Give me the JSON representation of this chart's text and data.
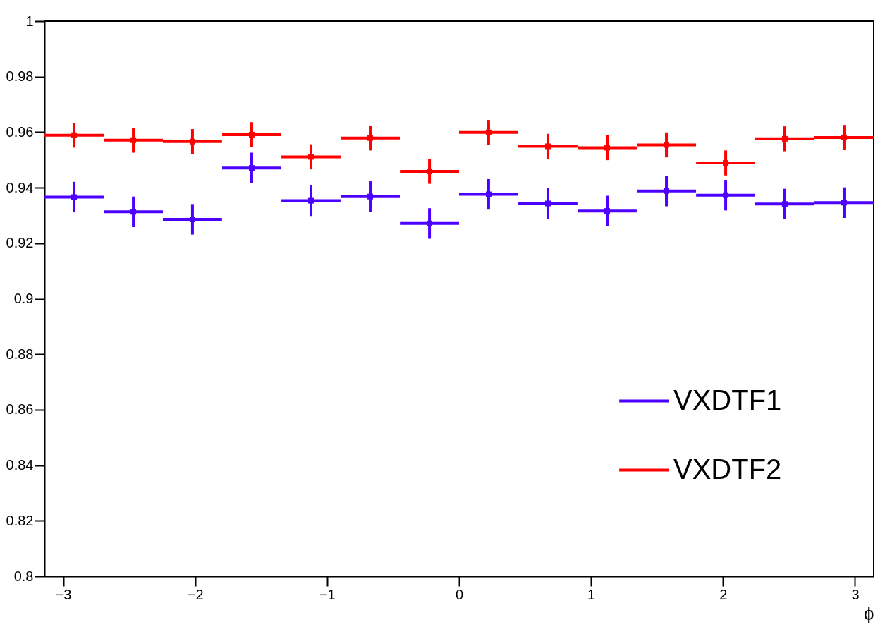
{
  "chart_data": {
    "type": "scatter",
    "xlabel": "ϕ",
    "x": [
      -2.917,
      -2.468,
      -2.02,
      -1.571,
      -1.122,
      -0.673,
      -0.224,
      0.224,
      0.673,
      1.122,
      1.571,
      2.02,
      2.468,
      2.917
    ],
    "series": [
      {
        "name": "VXDTF1",
        "color": "#4c00ff",
        "values": [
          0.9366,
          0.9313,
          0.9286,
          0.9471,
          0.9353,
          0.9368,
          0.9271,
          0.9376,
          0.9343,
          0.9316,
          0.9388,
          0.9373,
          0.9341,
          0.9346
        ],
        "errors": [
          0.0055,
          0.0055,
          0.0055,
          0.0055,
          0.0055,
          0.0055,
          0.0055,
          0.0055,
          0.0055,
          0.0055,
          0.0055,
          0.0055,
          0.0055,
          0.0055
        ],
        "xerrors": [
          0.224,
          0.224,
          0.224,
          0.224,
          0.224,
          0.224,
          0.224,
          0.224,
          0.224,
          0.224,
          0.224,
          0.224,
          0.224,
          0.224
        ]
      },
      {
        "name": "VXDTF2",
        "color": "#ff0000",
        "values": [
          0.9589,
          0.9571,
          0.9566,
          0.9591,
          0.9511,
          0.9579,
          0.9459,
          0.9599,
          0.9549,
          0.9544,
          0.9554,
          0.9489,
          0.9576,
          0.9581
        ],
        "errors": [
          0.0045,
          0.0045,
          0.0045,
          0.0045,
          0.0045,
          0.0045,
          0.0045,
          0.0045,
          0.0045,
          0.0045,
          0.0045,
          0.0045,
          0.0045,
          0.0045
        ],
        "xerrors": [
          0.224,
          0.224,
          0.224,
          0.224,
          0.224,
          0.224,
          0.224,
          0.224,
          0.224,
          0.224,
          0.224,
          0.224,
          0.224,
          0.224
        ]
      }
    ],
    "marker": "square",
    "xlim": [
      -3.1416,
      3.1416
    ],
    "xticks": [
      -3,
      -2,
      -1,
      0,
      1,
      2,
      3
    ],
    "ylim": [
      0.8,
      1
    ],
    "yticks": [
      0.8,
      0.82,
      0.84,
      0.86,
      0.88,
      0.9,
      0.92,
      0.94,
      0.96,
      0.98,
      1
    ],
    "grid": false,
    "legend": "bottom right"
  }
}
